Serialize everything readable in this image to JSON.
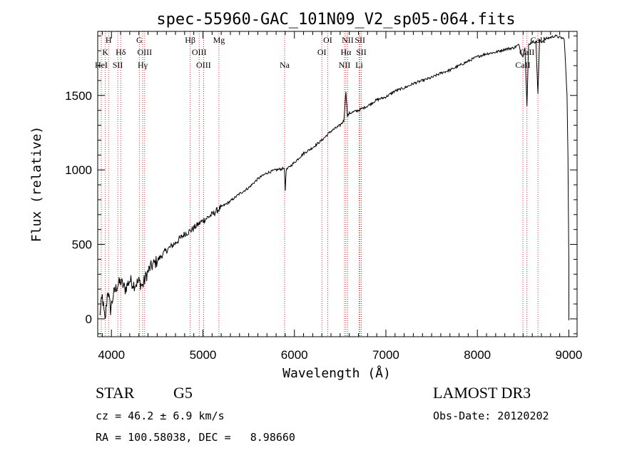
{
  "chart_data": {
    "type": "line",
    "title": "spec-55960-GAC_101N09_V2_sp05-064.fits",
    "xlabel": "Wavelength (Å)",
    "ylabel": "Flux (relative)",
    "xlim": [
      3850,
      9090
    ],
    "ylim": [
      -120,
      1930
    ],
    "xticks": [
      4000,
      5000,
      6000,
      7000,
      8000,
      9000
    ],
    "yticks": [
      0,
      500,
      1000,
      1500
    ],
    "series": [
      {
        "name": "flux",
        "x": [
          3870,
          3900,
          3930,
          3960,
          3990,
          4020,
          4060,
          4100,
          4150,
          4200,
          4250,
          4300,
          4340,
          4380,
          4420,
          4500,
          4600,
          4700,
          4800,
          4860,
          4900,
          4960,
          5000,
          5100,
          5200,
          5300,
          5400,
          5500,
          5600,
          5700,
          5800,
          5890,
          5900,
          5910,
          6000,
          6100,
          6200,
          6300,
          6400,
          6500,
          6540,
          6563,
          6580,
          6600,
          6700,
          6800,
          6900,
          7000,
          7100,
          7200,
          7300,
          7400,
          7500,
          7600,
          7700,
          7800,
          7900,
          8000,
          8100,
          8200,
          8300,
          8400,
          8450,
          8498,
          8520,
          8542,
          8560,
          8600,
          8640,
          8662,
          8680,
          8700,
          8750,
          8800,
          8850,
          8900,
          8950,
          8980,
          8990,
          9000
        ],
        "values": [
          20,
          150,
          -20,
          200,
          60,
          160,
          220,
          250,
          200,
          260,
          230,
          250,
          220,
          290,
          340,
          390,
          460,
          510,
          570,
          590,
          610,
          640,
          660,
          700,
          750,
          790,
          840,
          880,
          940,
          980,
          1000,
          1010,
          860,
          1000,
          1050,
          1110,
          1150,
          1200,
          1260,
          1300,
          1330,
          1530,
          1360,
          1380,
          1400,
          1430,
          1470,
          1490,
          1530,
          1550,
          1580,
          1600,
          1620,
          1650,
          1670,
          1700,
          1730,
          1760,
          1780,
          1790,
          1810,
          1820,
          1840,
          1760,
          1830,
          1430,
          1840,
          1860,
          1860,
          1510,
          1870,
          1860,
          1880,
          1890,
          1900,
          1890,
          1880,
          1500,
          1100,
          350
        ]
      }
    ],
    "lines": [
      {
        "label": "K",
        "wl": 3934,
        "row": 1
      },
      {
        "label": "H",
        "wl": 3969,
        "row": 0
      },
      {
        "label": "HeI",
        "wl": 3889,
        "row": 2
      },
      {
        "label": "SII",
        "wl": 4069,
        "row": 2
      },
      {
        "label": "Hδ",
        "wl": 4102,
        "row": 1
      },
      {
        "label": "G",
        "wl": 4305,
        "row": 0
      },
      {
        "label": "OIII",
        "wl": 4363,
        "row": 1
      },
      {
        "label": "Hγ",
        "wl": 4341,
        "row": 2
      },
      {
        "label": "Hβ",
        "wl": 4861,
        "row": 0
      },
      {
        "label": "OIII",
        "wl": 4959,
        "row": 1
      },
      {
        "label": "OIII",
        "wl": 5007,
        "row": 2
      },
      {
        "label": "Mg",
        "wl": 5175,
        "row": 0
      },
      {
        "label": "Na",
        "wl": 5893,
        "row": 2
      },
      {
        "label": "OI",
        "wl": 6364,
        "row": 0
      },
      {
        "label": "OI",
        "wl": 6300,
        "row": 1
      },
      {
        "label": "NII",
        "wl": 6548,
        "row": 2
      },
      {
        "label": "NII",
        "wl": 6583,
        "row": 0
      },
      {
        "label": "Hα",
        "wl": 6563,
        "row": 1
      },
      {
        "label": "SII",
        "wl": 6717,
        "row": 0
      },
      {
        "label": "SII",
        "wl": 6731,
        "row": 1
      },
      {
        "label": "Li",
        "wl": 6708,
        "row": 2
      },
      {
        "label": "CaII",
        "wl": 8662,
        "row": 0
      },
      {
        "label": "CaII",
        "wl": 8542,
        "row": 1
      },
      {
        "label": "CaII",
        "wl": 8498,
        "row": 2
      }
    ]
  },
  "info": {
    "class": "STAR",
    "subclass": "G5",
    "survey": "LAMOST DR3",
    "cz": "cz = 46.2 ± 6.9 km/s",
    "obs_date": "Obs-Date: 20120202",
    "coords": "RA = 100.58038, DEC =   8.98660"
  },
  "colors": {
    "line_marker": "#cc0000",
    "spectrum": "#000000"
  }
}
